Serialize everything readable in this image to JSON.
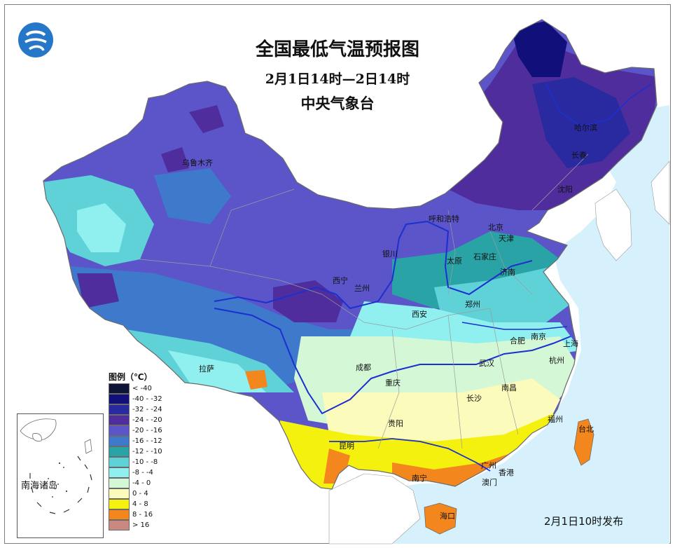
{
  "title": "全国最低气温预报图",
  "subtitle": "2月1日14时—2日14时",
  "agency": "中央气象台",
  "issued": "2月1日10时发布",
  "inset_label": "南海诸岛",
  "legend": {
    "title": "图例（℃）",
    "items": [
      {
        "label": "< -40",
        "color": "#0d1436"
      },
      {
        "label": "-40 - -32",
        "color": "#11107a"
      },
      {
        "label": "-32 - -24",
        "color": "#2a2aa0"
      },
      {
        "label": "-24 - -20",
        "color": "#4f2d9c"
      },
      {
        "label": "-20 - -16",
        "color": "#5b55c9"
      },
      {
        "label": "-16 - -12",
        "color": "#3f79cc"
      },
      {
        "label": "-12 - -10",
        "color": "#2aa3a6"
      },
      {
        "label": "-10 - -8",
        "color": "#5fd2d8"
      },
      {
        "label": "-8 - -4",
        "color": "#8ff0ef"
      },
      {
        "label": "-4 - 0",
        "color": "#d4f7d6"
      },
      {
        "label": "0 - 4",
        "color": "#fbfbbc"
      },
      {
        "label": "4 - 8",
        "color": "#f5f10f"
      },
      {
        "label": "8 - 16",
        "color": "#f3861d"
      },
      {
        "label": "> 16",
        "color": "#c98980"
      }
    ]
  },
  "cities": [
    {
      "name": "乌鲁木齐",
      "id": "urumqi"
    },
    {
      "name": "拉萨",
      "id": "lhasa"
    },
    {
      "name": "西宁",
      "id": "xining"
    },
    {
      "name": "兰州",
      "id": "lanzhou"
    },
    {
      "name": "银川",
      "id": "yinchuan"
    },
    {
      "name": "呼和浩特",
      "id": "hohhot"
    },
    {
      "name": "北京",
      "id": "beijing"
    },
    {
      "name": "天津",
      "id": "tianjin"
    },
    {
      "name": "石家庄",
      "id": "shijiazhuang"
    },
    {
      "name": "太原",
      "id": "taiyuan"
    },
    {
      "name": "济南",
      "id": "jinan"
    },
    {
      "name": "郑州",
      "id": "zhengzhou"
    },
    {
      "name": "西安",
      "id": "xian"
    },
    {
      "name": "沈阳",
      "id": "shenyang"
    },
    {
      "name": "长春",
      "id": "changchun"
    },
    {
      "name": "哈尔滨",
      "id": "harbin"
    },
    {
      "name": "合肥",
      "id": "hefei"
    },
    {
      "name": "南京",
      "id": "nanjing"
    },
    {
      "name": "上海",
      "id": "shanghai"
    },
    {
      "name": "杭州",
      "id": "hangzhou"
    },
    {
      "name": "武汉",
      "id": "wuhan"
    },
    {
      "name": "成都",
      "id": "chengdu"
    },
    {
      "name": "重庆",
      "id": "chongqing"
    },
    {
      "name": "长沙",
      "id": "changsha"
    },
    {
      "name": "南昌",
      "id": "nanchang"
    },
    {
      "name": "福州",
      "id": "fuzhou"
    },
    {
      "name": "台北",
      "id": "taipei"
    },
    {
      "name": "贵阳",
      "id": "guiyang"
    },
    {
      "name": "昆明",
      "id": "kunming"
    },
    {
      "name": "南宁",
      "id": "nanning"
    },
    {
      "name": "广州",
      "id": "guangzhou"
    },
    {
      "name": "香港",
      "id": "hongkong"
    },
    {
      "name": "澳门",
      "id": "macau"
    },
    {
      "name": "海口",
      "id": "haikou"
    }
  ]
}
